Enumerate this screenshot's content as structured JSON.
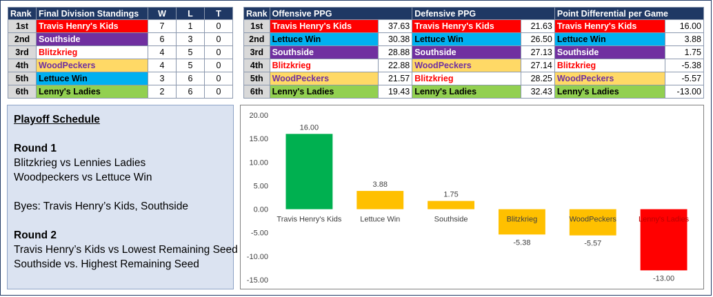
{
  "standings": {
    "headers": {
      "rank": "Rank",
      "team": "Final Division Standings",
      "w": "W",
      "l": "L",
      "t": "T"
    },
    "rows": [
      {
        "rank": "1st",
        "team": "Travis Henry's Kids",
        "w": "7",
        "l": "1",
        "t": "0",
        "bg": "#ff0000",
        "fg": "#ffffff"
      },
      {
        "rank": "2nd",
        "team": "Southside",
        "w": "6",
        "l": "3",
        "t": "0",
        "bg": "#7030a0",
        "fg": "#ffffff"
      },
      {
        "rank": "3rd",
        "team": "Blitzkrieg",
        "w": "4",
        "l": "5",
        "t": "0",
        "bg": "#ffffff",
        "fg": "#ff0000"
      },
      {
        "rank": "4th",
        "team": "WoodPeckers",
        "w": "4",
        "l": "5",
        "t": "0",
        "bg": "#ffd966",
        "fg": "#7030a0"
      },
      {
        "rank": "5th",
        "team": "Lettuce Win",
        "w": "3",
        "l": "6",
        "t": "0",
        "bg": "#00b0f0",
        "fg": "#000000"
      },
      {
        "rank": "6th",
        "team": "Lenny's Ladies",
        "w": "2",
        "l": "6",
        "t": "0",
        "bg": "#92d050",
        "fg": "#000000"
      }
    ]
  },
  "stats": {
    "headers": {
      "rank": "Rank",
      "off": "Offensive PPG",
      "def": "Defensive PPG",
      "diff": "Point Differential per Game"
    },
    "rows": [
      {
        "rank": "1st",
        "off_team": "Travis Henry's Kids",
        "off_val": "37.63",
        "off_bg": "#ff0000",
        "off_fg": "#ffffff",
        "def_team": "Travis Henry's Kids",
        "def_val": "21.63",
        "def_bg": "#ff0000",
        "def_fg": "#ffffff",
        "diff_team": "Travis Henry's Kids",
        "diff_val": "16.00",
        "diff_bg": "#ff0000",
        "diff_fg": "#ffffff"
      },
      {
        "rank": "2nd",
        "off_team": "Lettuce Win",
        "off_val": "30.38",
        "off_bg": "#00b0f0",
        "off_fg": "#000000",
        "def_team": "Lettuce Win",
        "def_val": "26.50",
        "def_bg": "#00b0f0",
        "def_fg": "#000000",
        "diff_team": "Lettuce Win",
        "diff_val": "3.88",
        "diff_bg": "#00b0f0",
        "diff_fg": "#000000"
      },
      {
        "rank": "3rd",
        "off_team": "Southside",
        "off_val": "28.88",
        "off_bg": "#7030a0",
        "off_fg": "#ffffff",
        "def_team": "Southside",
        "def_val": "27.13",
        "def_bg": "#7030a0",
        "def_fg": "#ffffff",
        "diff_team": "Southside",
        "diff_val": "1.75",
        "diff_bg": "#7030a0",
        "diff_fg": "#ffffff"
      },
      {
        "rank": "4th",
        "off_team": "Blitzkrieg",
        "off_val": "22.88",
        "off_bg": "#ffffff",
        "off_fg": "#ff0000",
        "def_team": "WoodPeckers",
        "def_val": "27.14",
        "def_bg": "#ffd966",
        "def_fg": "#7030a0",
        "diff_team": "Blitzkrieg",
        "diff_val": "-5.38",
        "diff_bg": "#ffffff",
        "diff_fg": "#ff0000"
      },
      {
        "rank": "5th",
        "off_team": "WoodPeckers",
        "off_val": "21.57",
        "off_bg": "#ffd966",
        "off_fg": "#7030a0",
        "def_team": "Blitzkrieg",
        "def_val": "28.25",
        "def_bg": "#ffffff",
        "def_fg": "#ff0000",
        "diff_team": "WoodPeckers",
        "diff_val": "-5.57",
        "diff_bg": "#ffd966",
        "diff_fg": "#7030a0"
      },
      {
        "rank": "6th",
        "off_team": "Lenny's Ladies",
        "off_val": "19.43",
        "off_bg": "#92d050",
        "off_fg": "#000000",
        "def_team": "Lenny's Ladies",
        "def_val": "32.43",
        "def_bg": "#92d050",
        "def_fg": "#000000",
        "diff_team": "Lenny's Ladies",
        "diff_val": "-13.00",
        "diff_bg": "#92d050",
        "diff_fg": "#000000"
      }
    ]
  },
  "schedule": {
    "title": "Playoff Schedule",
    "round1_title": "Round 1",
    "round1_games": [
      "Blitzkrieg vs Lennies Ladies",
      "Woodpeckers vs Lettuce Win"
    ],
    "byes": "Byes: Travis Henry’s Kids, Southside",
    "round2_title": "Round 2",
    "round2_games": [
      "Travis Henry’s Kids vs Lowest Remaining Seed",
      "Southside vs. Highest Remaining Seed"
    ]
  },
  "chart_data": {
    "type": "bar",
    "categories": [
      "Travis Henry's Kids",
      "Lettuce Win",
      "Southside",
      "Blitzkrieg",
      "WoodPeckers",
      "Lenny's Ladies"
    ],
    "values": [
      16.0,
      3.88,
      1.75,
      -5.38,
      -5.57,
      -13.0
    ],
    "value_labels": [
      "16.00",
      "3.88",
      "1.75",
      "-5.38",
      "-5.57",
      "-13.00"
    ],
    "colors": [
      "#00b050",
      "#ffc000",
      "#ffc000",
      "#ffc000",
      "#ffc000",
      "#ff0000"
    ],
    "category_label_colors": [
      "#404040",
      "#404040",
      "#404040",
      "#404040",
      "#404040",
      "#404040"
    ],
    "ylim": [
      -15,
      20
    ],
    "yticks": [
      20,
      15,
      10,
      5,
      0,
      -5,
      -10,
      -15
    ],
    "ytick_labels": [
      "20.00",
      "15.00",
      "10.00",
      "5.00",
      "0.00",
      "-5.00",
      "-10.00",
      "-15.00"
    ],
    "grid": false,
    "title": "",
    "xlabel": "",
    "ylabel": ""
  }
}
